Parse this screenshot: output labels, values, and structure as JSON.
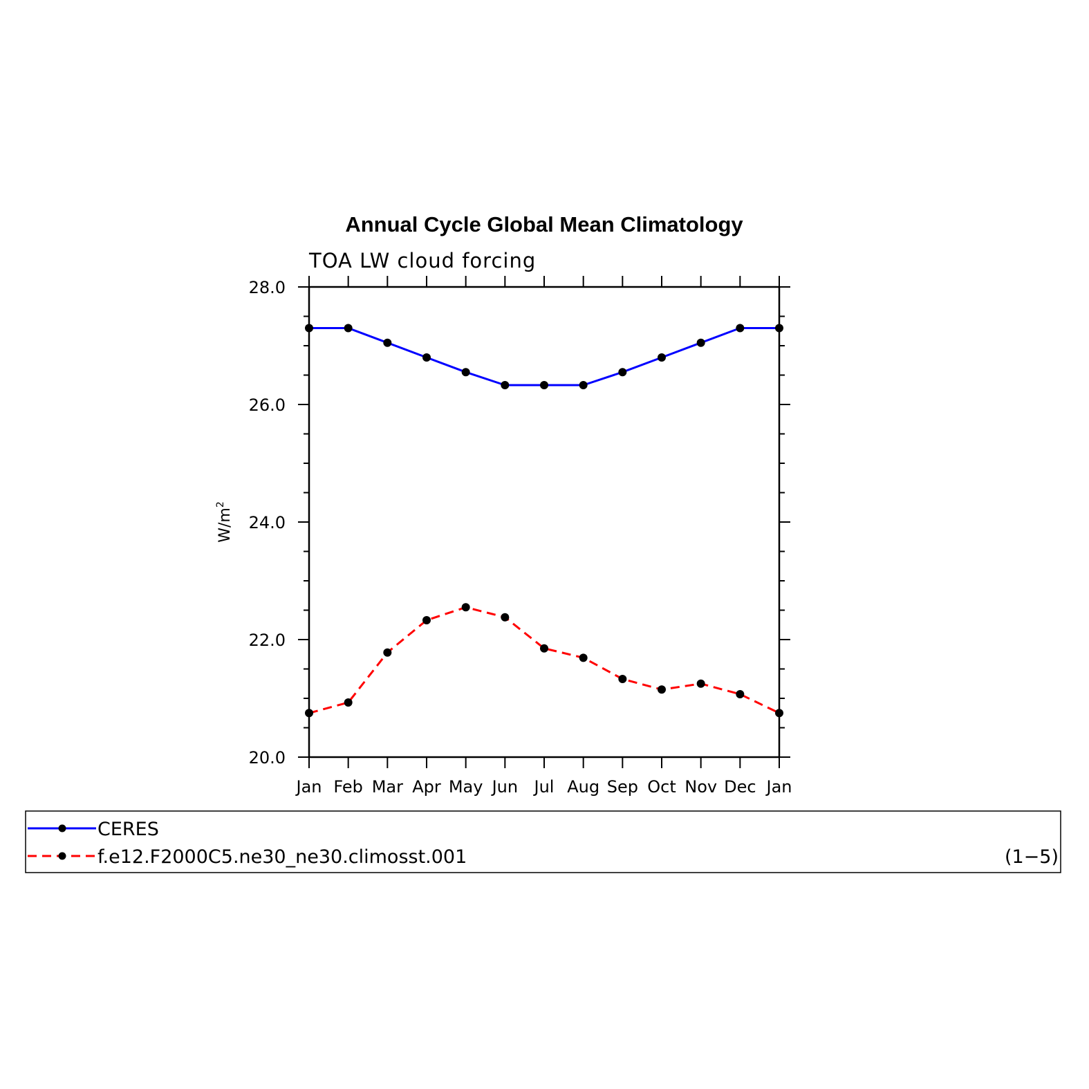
{
  "chart_data": {
    "type": "line",
    "title": "Annual Cycle Global Mean Climatology",
    "subtitle": "TOA LW cloud forcing",
    "ylabel_base": "W/m",
    "ylabel_sup": "2",
    "ylim": [
      20.0,
      28.0
    ],
    "yticks": [
      20.0,
      22.0,
      24.0,
      26.0,
      28.0
    ],
    "categories": [
      "Jan",
      "Feb",
      "Mar",
      "Apr",
      "May",
      "Jun",
      "Jul",
      "Aug",
      "Sep",
      "Oct",
      "Nov",
      "Dec",
      "Jan"
    ],
    "series": [
      {
        "name": "CERES",
        "color": "#0000ff",
        "style": "solid",
        "values": [
          27.3,
          27.3,
          27.05,
          26.8,
          26.55,
          26.33,
          26.33,
          26.33,
          26.55,
          26.8,
          27.05,
          27.3,
          27.3
        ]
      },
      {
        "name": "f.e12.F2000C5.ne30_ne30.climosst.001",
        "color": "#ff0000",
        "style": "dashed",
        "values": [
          20.75,
          20.93,
          21.78,
          22.33,
          22.55,
          22.38,
          21.85,
          21.69,
          21.33,
          21.15,
          21.25,
          21.07,
          20.75
        ]
      }
    ],
    "legend": {
      "placement": "bottom",
      "note": "(1−5)"
    },
    "grid": false
  }
}
